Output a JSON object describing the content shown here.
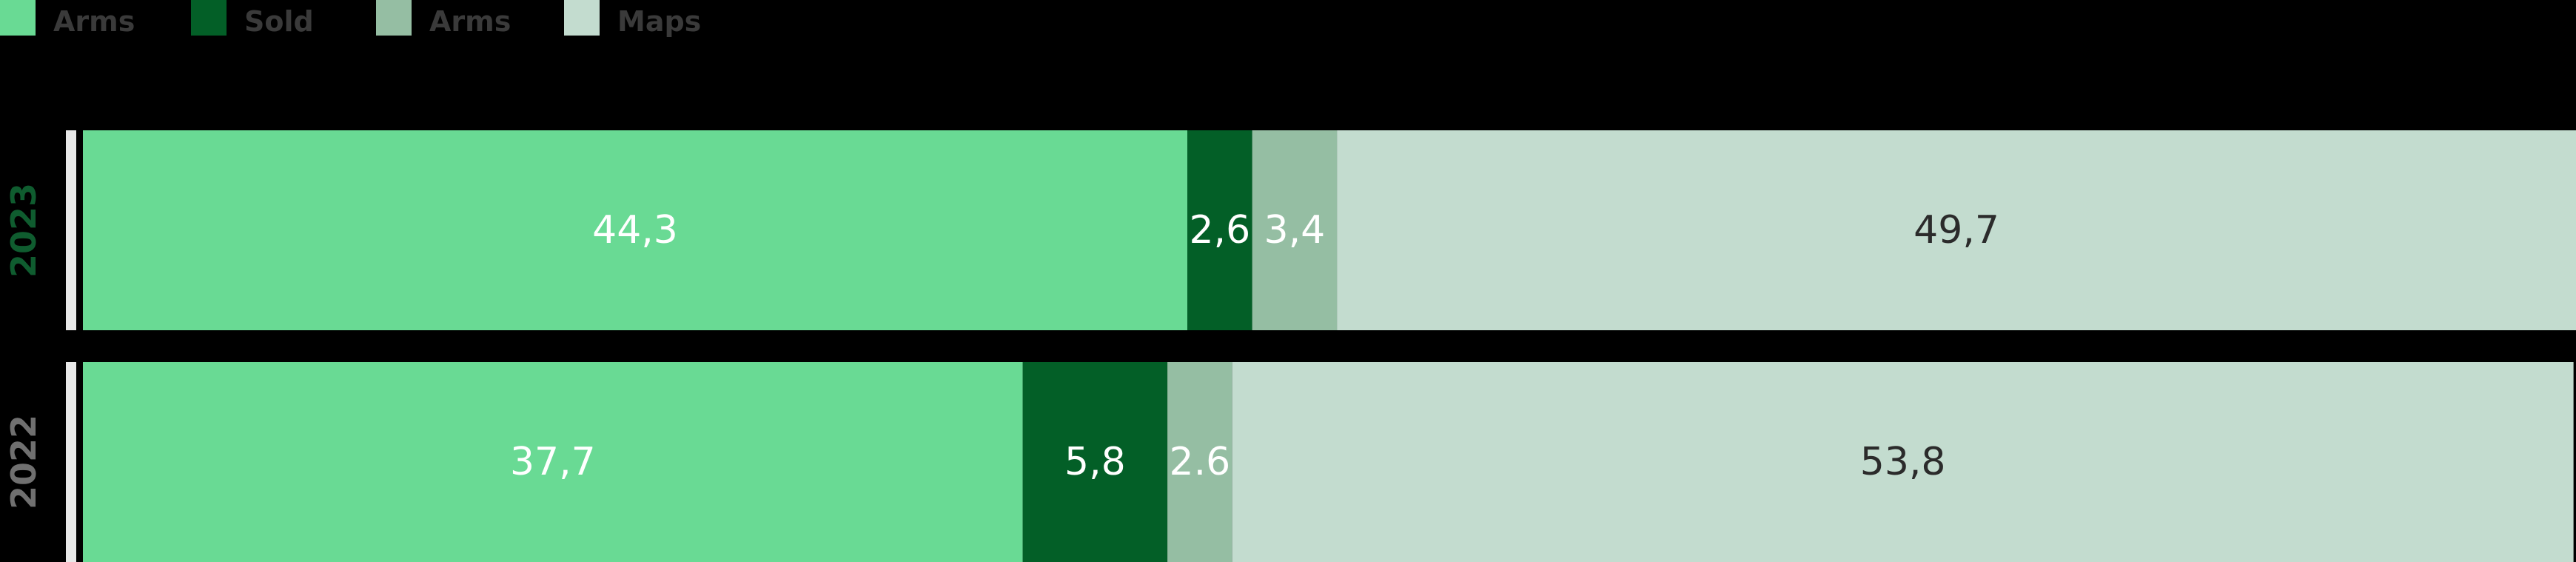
{
  "chart_data": {
    "type": "bar",
    "orientation": "horizontal",
    "stacked": true,
    "xlim": [
      0,
      100
    ],
    "categories": [
      "2023",
      "2022"
    ],
    "category_colors": [
      "#0f5c2f",
      "#707070"
    ],
    "series": [
      {
        "name": "Arms",
        "color": "#69da94",
        "label_color": "#ffffff",
        "values": [
          44.3,
          37.7
        ],
        "labels": [
          "44,3",
          "37,7"
        ]
      },
      {
        "name": "Sold",
        "color": "#035f27",
        "label_color": "#ffffff",
        "values": [
          2.6,
          5.8
        ],
        "labels": [
          "2,6",
          "5,8"
        ]
      },
      {
        "name": "Arms",
        "color": "#95bea3",
        "label_color": "#ffffff",
        "values": [
          3.4,
          2.6
        ],
        "labels": [
          "3,4",
          "2.6"
        ]
      },
      {
        "name": "Maps",
        "color": "#c3dccf",
        "label_color": "#2b2b2b",
        "values": [
          49.7,
          53.8
        ],
        "labels": [
          "49,7",
          "53,8"
        ]
      }
    ],
    "legend": {
      "position": "top-left",
      "label_color": "#3a3a3a"
    },
    "grid": false
  }
}
